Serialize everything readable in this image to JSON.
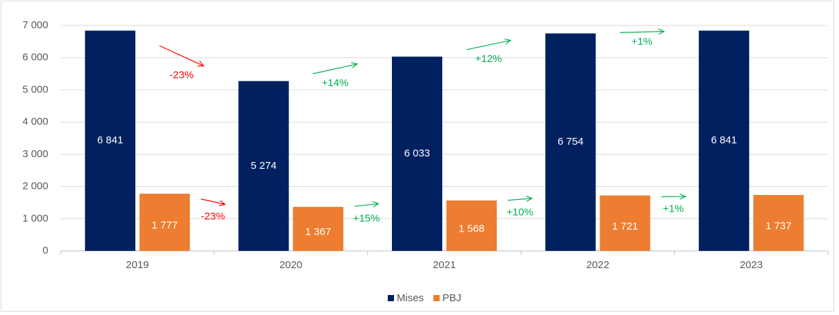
{
  "chart_data": {
    "type": "bar",
    "categories": [
      "2019",
      "2020",
      "2021",
      "2022",
      "2023"
    ],
    "series": [
      {
        "name": "Mises",
        "color": "#002060",
        "values": [
          6841,
          5274,
          6033,
          6754,
          6841
        ],
        "value_labels": [
          "6 841",
          "5 274",
          "6 033",
          "6 754",
          "6 841"
        ],
        "changes": [
          {
            "label": "-23%",
            "color": "#ff0000"
          },
          {
            "label": "+14%",
            "color": "#00b050"
          },
          {
            "label": "+12%",
            "color": "#00b050"
          },
          {
            "label": "+1%",
            "color": "#00b050"
          }
        ]
      },
      {
        "name": "PBJ",
        "color": "#ed7d31",
        "values": [
          1777,
          1367,
          1568,
          1721,
          1737
        ],
        "value_labels": [
          "1 777",
          "1 367",
          "1 568",
          "1 721",
          "1 737"
        ],
        "changes": [
          {
            "label": "-23%",
            "color": "#ff0000"
          },
          {
            "label": "+15%",
            "color": "#00b050"
          },
          {
            "label": "+10%",
            "color": "#00b050"
          },
          {
            "label": "+1%",
            "color": "#00b050"
          }
        ]
      }
    ],
    "ylim": [
      0,
      7000
    ],
    "yticks": [
      0,
      {
        "value": 1000,
        "label": "1 000"
      },
      {
        "value": 2000,
        "label": "2 000"
      },
      {
        "value": 3000,
        "label": "3 000"
      },
      {
        "value": 4000,
        "label": "4 000"
      },
      {
        "value": 5000,
        "label": "5 000"
      },
      {
        "value": 6000,
        "label": "6 000"
      },
      {
        "value": 7000,
        "label": "7 000"
      }
    ],
    "grid": true,
    "legend": "bottom"
  }
}
